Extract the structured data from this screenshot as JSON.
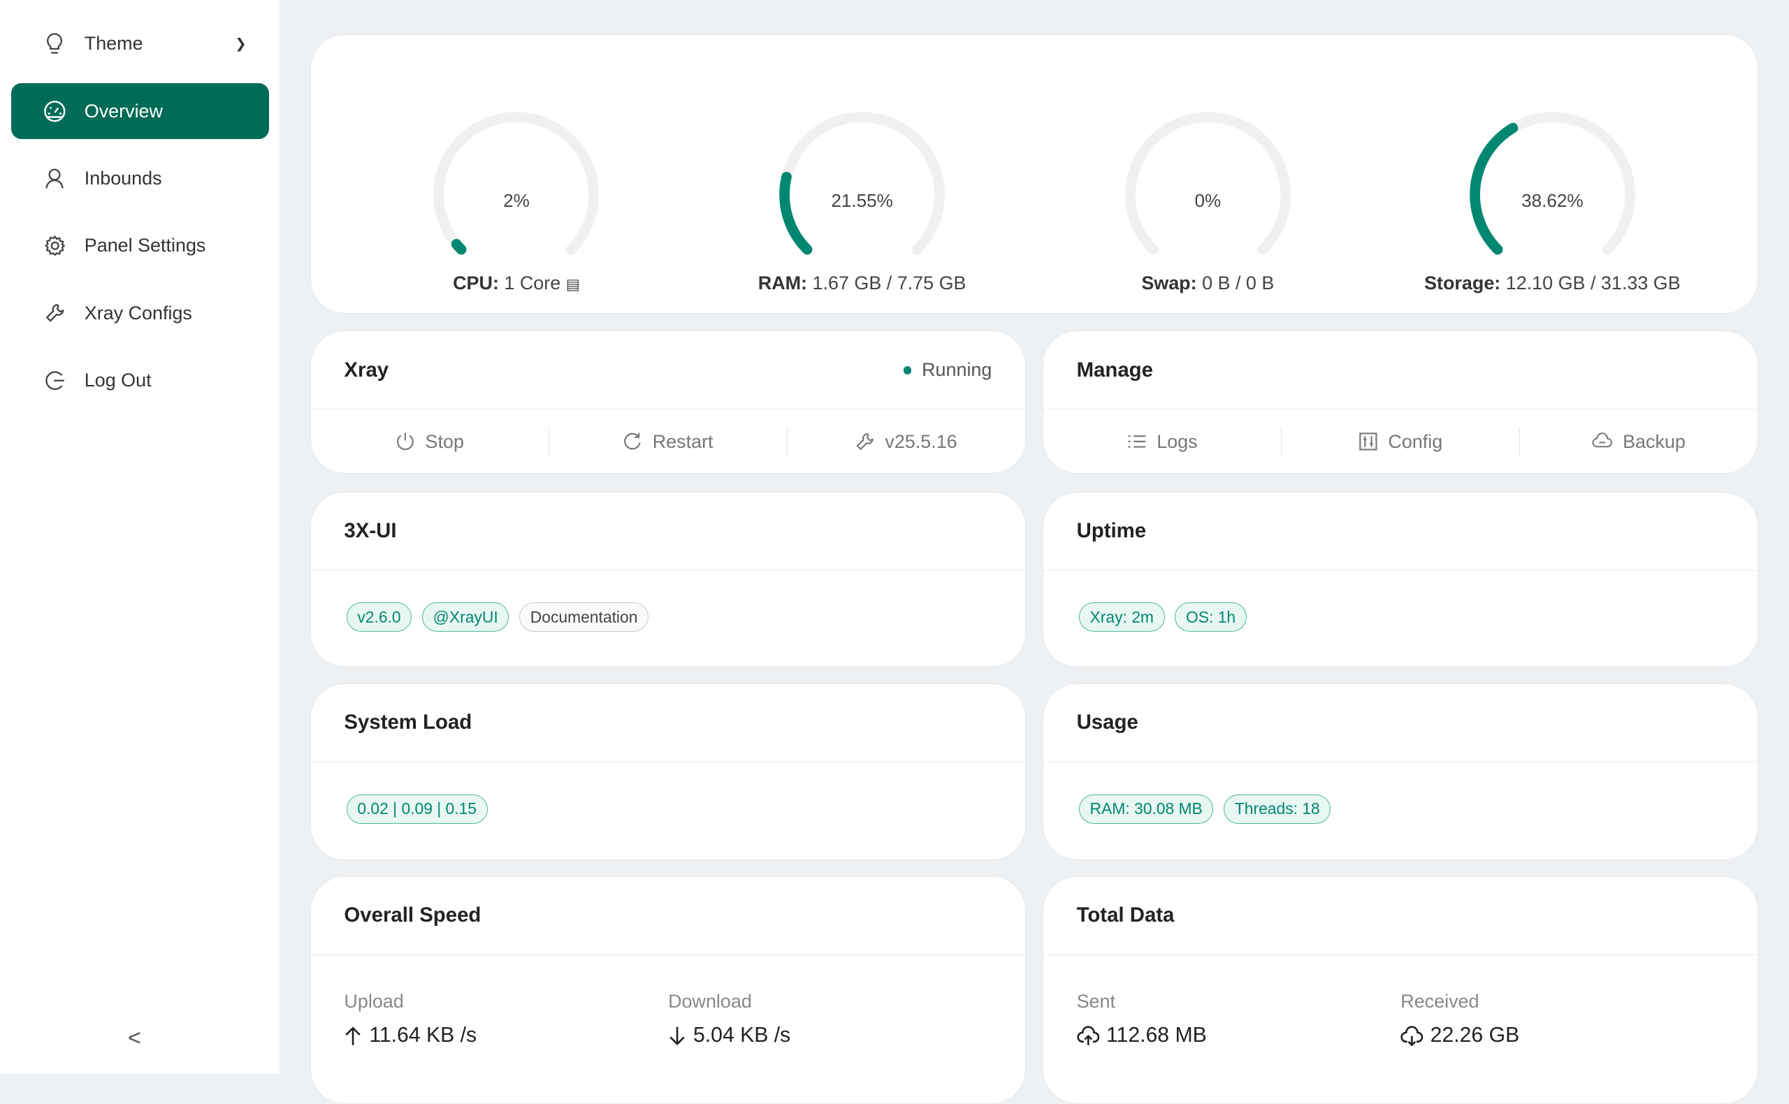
{
  "sidebar": {
    "items": [
      {
        "label": "Theme",
        "icon": "bulb-icon"
      },
      {
        "label": "Overview",
        "icon": "dashboard-icon",
        "active": true
      },
      {
        "label": "Inbounds",
        "icon": "user-icon"
      },
      {
        "label": "Panel Settings",
        "icon": "gear-icon"
      },
      {
        "label": "Xray Configs",
        "icon": "tool-icon"
      },
      {
        "label": "Log Out",
        "icon": "logout-icon"
      }
    ],
    "collapse": "<"
  },
  "gauges": [
    {
      "value_text": "2%",
      "percent": 2,
      "label": "CPU:",
      "detail": "1 Core"
    },
    {
      "value_text": "21.55%",
      "percent": 21.55,
      "label": "RAM:",
      "detail": "1.67 GB / 7.75 GB"
    },
    {
      "value_text": "0%",
      "percent": 0,
      "label": "Swap:",
      "detail": "0 B / 0 B"
    },
    {
      "value_text": "38.62%",
      "percent": 38.62,
      "label": "Storage:",
      "detail": "12.10 GB / 31.33 GB"
    }
  ],
  "xray": {
    "title": "Xray",
    "status": "Running",
    "stop": "Stop",
    "restart": "Restart",
    "version": "v25.5.16"
  },
  "manage": {
    "title": "Manage",
    "logs": "Logs",
    "config": "Config",
    "backup": "Backup"
  },
  "panel": {
    "title": "3X-UI",
    "tags": [
      "v2.6.0",
      "@XrayUI",
      "Documentation"
    ]
  },
  "uptime": {
    "title": "Uptime",
    "tags": [
      "Xray: 2m",
      "OS: 1h"
    ]
  },
  "load": {
    "title": "System Load",
    "tags": [
      "0.02 | 0.09 | 0.15"
    ]
  },
  "usage": {
    "title": "Usage",
    "tags": [
      "RAM: 30.08 MB",
      "Threads: 18"
    ]
  },
  "speed": {
    "title": "Overall Speed",
    "upload_label": "Upload",
    "upload": "11.64 KB /s",
    "download_label": "Download",
    "download": "5.04 KB /s"
  },
  "total": {
    "title": "Total Data",
    "sent_label": "Sent",
    "sent": "112.68 MB",
    "received_label": "Received",
    "received": "22.26 GB"
  },
  "colors": {
    "accent": "#008771",
    "sidebar_active": "#006b57",
    "background": "#eef1f4"
  }
}
